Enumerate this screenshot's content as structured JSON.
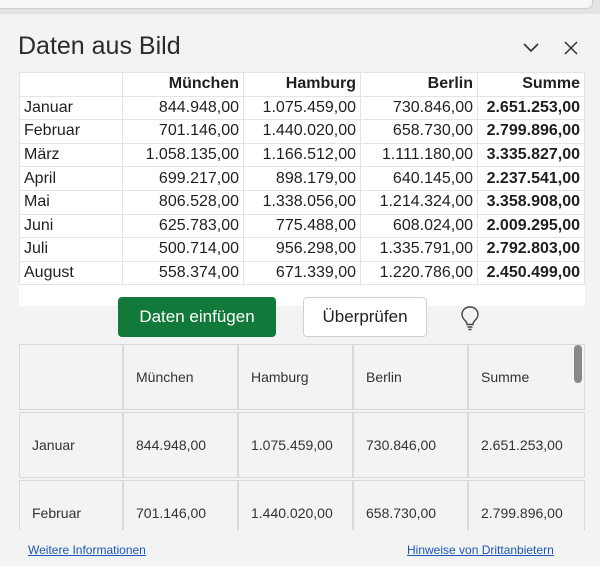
{
  "pane": {
    "title": "Daten aus Bild",
    "collapse_icon": "chevron-down-icon",
    "close_icon": "close-icon"
  },
  "image_table": {
    "headers": [
      "",
      "München",
      "Hamburg",
      "Berlin",
      "Summe"
    ],
    "rows": [
      [
        "Januar",
        "844.948,00",
        "1.075.459,00",
        "730.846,00",
        "2.651.253,00"
      ],
      [
        "Februar",
        "701.146,00",
        "1.440.020,00",
        "658.730,00",
        "2.799.896,00"
      ],
      [
        "März",
        "1.058.135,00",
        "1.166.512,00",
        "1.111.180,00",
        "3.335.827,00"
      ],
      [
        "April",
        "699.217,00",
        "898.179,00",
        "640.145,00",
        "2.237.541,00"
      ],
      [
        "Mai",
        "806.528,00",
        "1.338.056,00",
        "1.214.324,00",
        "3.358.908,00"
      ],
      [
        "Juni",
        "625.783,00",
        "775.488,00",
        "608.024,00",
        "2.009.295,00"
      ],
      [
        "Juli",
        "500.714,00",
        "956.298,00",
        "1.335.791,00",
        "2.792.803,00"
      ],
      [
        "August",
        "558.374,00",
        "671.339,00",
        "1.220.786,00",
        "2.450.499,00"
      ]
    ]
  },
  "actions": {
    "insert_label": "Daten einfügen",
    "review_label": "Überprüfen",
    "tip_icon": "lightbulb-icon"
  },
  "preview": {
    "headers": [
      "",
      "München",
      "Hamburg",
      "Berlin",
      "Summe"
    ],
    "rows": [
      [
        "Januar",
        "844.948,00",
        "1.075.459,00",
        "730.846,00",
        "2.651.253,00"
      ],
      [
        "Februar",
        "701.146,00",
        "1.440.020,00",
        "658.730,00",
        "2.799.896,00"
      ]
    ]
  },
  "footer": {
    "more_info": "Weitere Informationen",
    "third_party": "Hinweise von Drittanbietern"
  },
  "colors": {
    "primary_button": "#117a3a",
    "link": "#1a56b8"
  }
}
